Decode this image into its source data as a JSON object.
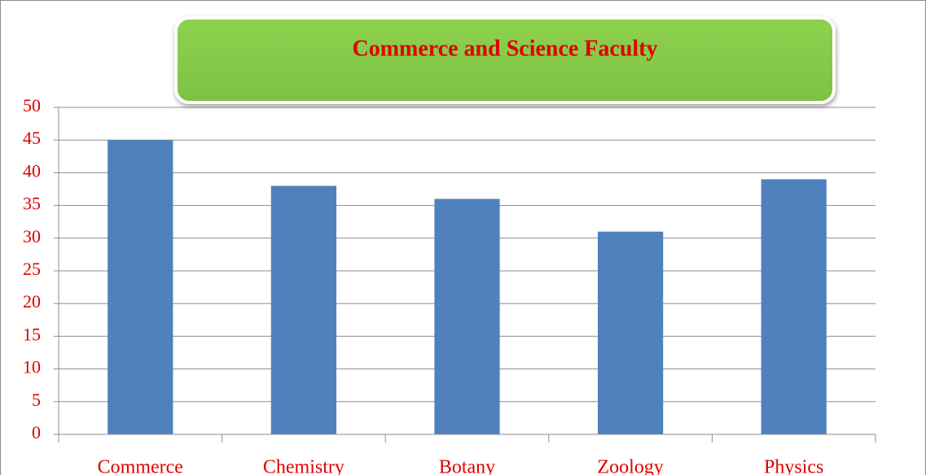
{
  "chart_data": {
    "type": "bar",
    "title": "Commerce and Science Faculty",
    "categories": [
      "Commerce",
      "Chemistry",
      "Botany",
      "Zoology",
      "Physics"
    ],
    "values": [
      45,
      38,
      36,
      31,
      39
    ],
    "color": "#4f81bd",
    "ylim": [
      0,
      50
    ],
    "yticks": [
      0,
      5,
      10,
      15,
      20,
      25,
      30,
      35,
      40,
      45,
      50
    ],
    "grid": true
  }
}
